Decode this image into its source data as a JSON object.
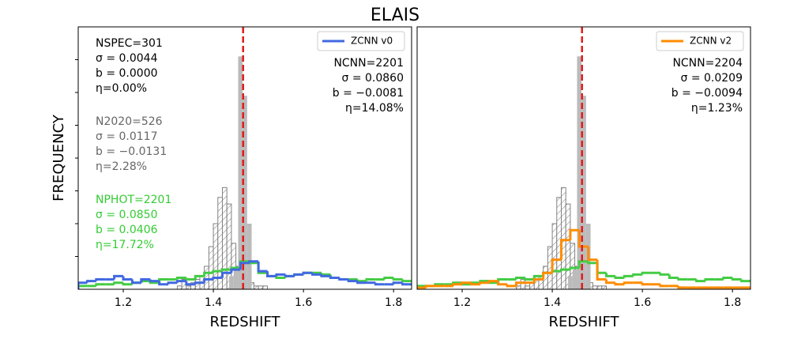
{
  "title": "ELAIS",
  "chart_data": [
    {
      "type": "histogram",
      "xlabel": "REDSHIFT",
      "ylabel": "FREQUENCY",
      "xlim": [
        1.1,
        1.84
      ],
      "ylim": [
        0,
        8
      ],
      "xticks": [
        1.2,
        1.4,
        1.6,
        1.8
      ],
      "yticks": [
        1,
        2,
        3,
        4,
        5,
        6,
        7
      ],
      "vline": 1.466,
      "vline_color": "#e31a1c",
      "legend_loc": "upper right",
      "series": [
        {
          "style": "hatched",
          "color": "#808080",
          "bins": [
            1.32,
            1.33,
            1.34,
            1.35,
            1.36,
            1.37,
            1.38,
            1.39,
            1.4,
            1.41,
            1.42,
            1.43,
            1.44,
            1.45,
            1.46,
            1.47,
            1.48,
            1.49,
            1.5,
            1.51,
            1.52
          ],
          "values": [
            0.1,
            0.3,
            0.1,
            0.2,
            0.3,
            0.4,
            0.7,
            1.3,
            2.0,
            2.8,
            3.1,
            2.6,
            1.4,
            0.7,
            0.5,
            0.3,
            0.2,
            0.1,
            0.1,
            0.1
          ]
        },
        {
          "style": "filled",
          "color": "#bbbbbb",
          "bins": [
            1.435,
            1.445,
            1.455,
            1.465,
            1.475,
            1.485
          ],
          "values": [
            0.4,
            0.6,
            7.1,
            5.9,
            2.0
          ]
        },
        {
          "style": "step",
          "color": "#44cc44",
          "bins": [
            1.1,
            1.12,
            1.14,
            1.16,
            1.18,
            1.2,
            1.22,
            1.24,
            1.26,
            1.28,
            1.3,
            1.32,
            1.34,
            1.36,
            1.38,
            1.4,
            1.42,
            1.44,
            1.46,
            1.48,
            1.5,
            1.52,
            1.54,
            1.56,
            1.58,
            1.6,
            1.62,
            1.64,
            1.66,
            1.68,
            1.7,
            1.72,
            1.74,
            1.76,
            1.78,
            1.8,
            1.82,
            1.84
          ],
          "values": [
            0.1,
            0.1,
            0.15,
            0.15,
            0.2,
            0.15,
            0.2,
            0.25,
            0.2,
            0.3,
            0.3,
            0.35,
            0.3,
            0.4,
            0.5,
            0.55,
            0.6,
            0.65,
            0.85,
            0.8,
            0.5,
            0.4,
            0.35,
            0.4,
            0.45,
            0.5,
            0.5,
            0.45,
            0.35,
            0.3,
            0.3,
            0.25,
            0.3,
            0.3,
            0.35,
            0.3,
            0.25
          ]
        },
        {
          "name": "ZCNN v0",
          "style": "step",
          "color": "#4169e1",
          "bins": [
            1.1,
            1.12,
            1.14,
            1.16,
            1.18,
            1.2,
            1.22,
            1.24,
            1.26,
            1.28,
            1.3,
            1.32,
            1.34,
            1.36,
            1.38,
            1.4,
            1.42,
            1.44,
            1.46,
            1.48,
            1.5,
            1.52,
            1.54,
            1.56,
            1.58,
            1.6,
            1.62,
            1.64,
            1.66,
            1.68,
            1.7,
            1.72,
            1.74,
            1.76,
            1.78,
            1.8,
            1.82,
            1.84
          ],
          "values": [
            0.2,
            0.25,
            0.3,
            0.3,
            0.4,
            0.3,
            0.2,
            0.3,
            0.25,
            0.15,
            0.2,
            0.25,
            0.15,
            0.2,
            0.3,
            0.35,
            0.5,
            0.6,
            0.8,
            0.85,
            0.55,
            0.4,
            0.45,
            0.4,
            0.45,
            0.5,
            0.45,
            0.4,
            0.35,
            0.3,
            0.25,
            0.2,
            0.2,
            0.15,
            0.15,
            0.2,
            0.15
          ]
        }
      ],
      "annotations": [
        {
          "loc": "upper left",
          "color": "#000000",
          "lines": [
            "NSPEC=301",
            "σ = 0.0044",
            "b = 0.0000",
            "η=0.00%"
          ]
        },
        {
          "loc": "upper left",
          "color": "#666666",
          "lines": [
            "N2020=526",
            "σ = 0.0117",
            "b = −0.0131",
            "η=2.28%"
          ]
        },
        {
          "loc": "upper left",
          "color": "#33cc33",
          "lines": [
            "NPHOT=2201",
            "σ = 0.0850",
            "b = 0.0406",
            "η=17.72%"
          ]
        },
        {
          "loc": "upper right",
          "color": "#000000",
          "lines": [
            "NCNN=2201",
            "σ = 0.0860",
            "b = −0.0081",
            "η=14.08%"
          ]
        }
      ]
    },
    {
      "type": "histogram",
      "xlabel": "REDSHIFT",
      "xlim": [
        1.1,
        1.84
      ],
      "ylim": [
        0,
        8
      ],
      "xticks": [
        1.2,
        1.4,
        1.6,
        1.8
      ],
      "vline": 1.466,
      "vline_color": "#e31a1c",
      "legend_loc": "upper right",
      "series": [
        {
          "style": "hatched",
          "color": "#808080",
          "bins": [
            1.32,
            1.33,
            1.34,
            1.35,
            1.36,
            1.37,
            1.38,
            1.39,
            1.4,
            1.41,
            1.42,
            1.43,
            1.44,
            1.45,
            1.46,
            1.47,
            1.48,
            1.49,
            1.5,
            1.51,
            1.52
          ],
          "values": [
            0.1,
            0.3,
            0.1,
            0.2,
            0.3,
            0.4,
            0.7,
            1.3,
            2.0,
            2.8,
            3.1,
            2.6,
            1.4,
            0.7,
            0.5,
            0.3,
            0.2,
            0.1,
            0.1,
            0.1
          ]
        },
        {
          "style": "filled",
          "color": "#bbbbbb",
          "bins": [
            1.435,
            1.445,
            1.455,
            1.465,
            1.475,
            1.485
          ],
          "values": [
            0.4,
            0.6,
            7.1,
            5.9,
            2.0
          ]
        },
        {
          "style": "step",
          "color": "#44cc44",
          "bins": [
            1.1,
            1.12,
            1.14,
            1.16,
            1.18,
            1.2,
            1.22,
            1.24,
            1.26,
            1.28,
            1.3,
            1.32,
            1.34,
            1.36,
            1.38,
            1.4,
            1.42,
            1.44,
            1.46,
            1.48,
            1.5,
            1.52,
            1.54,
            1.56,
            1.58,
            1.6,
            1.62,
            1.64,
            1.66,
            1.68,
            1.7,
            1.72,
            1.74,
            1.76,
            1.78,
            1.8,
            1.82,
            1.84
          ],
          "values": [
            0.1,
            0.1,
            0.15,
            0.15,
            0.2,
            0.15,
            0.2,
            0.25,
            0.2,
            0.3,
            0.3,
            0.35,
            0.3,
            0.4,
            0.5,
            0.55,
            0.6,
            0.65,
            0.85,
            0.8,
            0.5,
            0.4,
            0.35,
            0.4,
            0.45,
            0.5,
            0.5,
            0.45,
            0.35,
            0.3,
            0.3,
            0.25,
            0.3,
            0.3,
            0.35,
            0.3,
            0.25
          ]
        },
        {
          "name": "ZCNN v2",
          "style": "step",
          "color": "#ff8c00",
          "bins": [
            1.1,
            1.12,
            1.14,
            1.16,
            1.18,
            1.2,
            1.22,
            1.24,
            1.26,
            1.28,
            1.3,
            1.32,
            1.34,
            1.36,
            1.38,
            1.4,
            1.42,
            1.44,
            1.46,
            1.48,
            1.5,
            1.52,
            1.54,
            1.56,
            1.58,
            1.6,
            1.62,
            1.64,
            1.66,
            1.68,
            1.7,
            1.72,
            1.74,
            1.76,
            1.78,
            1.8,
            1.82,
            1.84
          ],
          "values": [
            0.05,
            0.1,
            0.1,
            0.1,
            0.15,
            0.2,
            0.15,
            0.2,
            0.25,
            0.15,
            0.1,
            0.2,
            0.2,
            0.3,
            0.5,
            0.9,
            1.5,
            1.8,
            1.3,
            0.9,
            0.3,
            0.2,
            0.15,
            0.2,
            0.2,
            0.15,
            0.15,
            0.1,
            0.1,
            0.05,
            0.05,
            0.05,
            0.05,
            0.05,
            0.05,
            0.05,
            0.05
          ]
        }
      ],
      "annotations": [
        {
          "loc": "upper right",
          "color": "#000000",
          "lines": [
            "NCNN=2204",
            "σ = 0.0209",
            "b = −0.0094",
            "η=1.23%"
          ]
        }
      ]
    }
  ]
}
